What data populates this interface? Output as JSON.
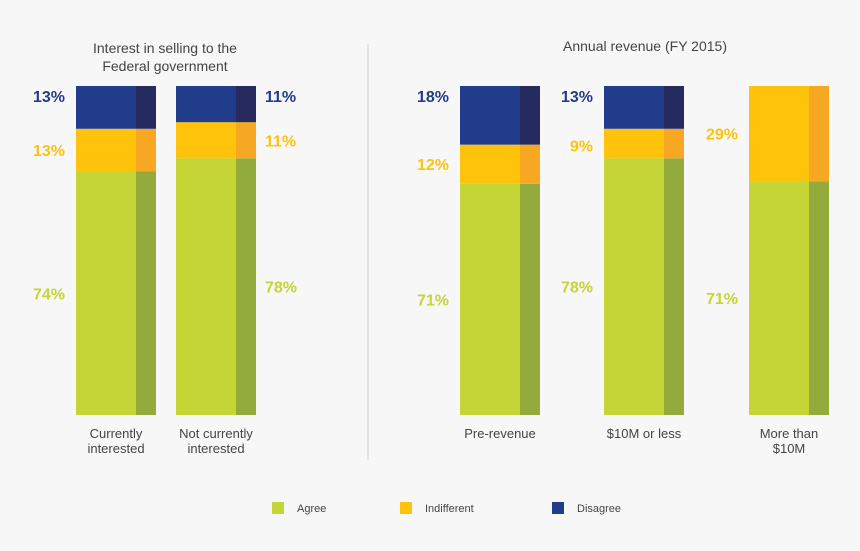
{
  "colors": {
    "agree": "#c5d535",
    "agree_dark": "#92ab3c",
    "indifferent": "#ffc30b",
    "indifferent_dark": "#f7a823",
    "disagree": "#223c8c",
    "disagree_dark": "#262a5e",
    "text": "#444444",
    "divider": "#cccccc"
  },
  "chart_data": [
    {
      "type": "bar",
      "stacked": true,
      "title_lines": [
        "Interest in selling to the",
        "Federal government"
      ],
      "categories": [
        {
          "lines": [
            "Currently",
            "interested"
          ]
        },
        {
          "lines": [
            "Not currently",
            "interested"
          ]
        }
      ],
      "series": [
        {
          "name": "Agree",
          "key": "agree",
          "values": [
            74,
            78
          ],
          "labels": [
            "74%",
            "78%"
          ]
        },
        {
          "name": "Indifferent",
          "key": "indifferent",
          "values": [
            13,
            11
          ],
          "labels": [
            "13%",
            "11%"
          ]
        },
        {
          "name": "Disagree",
          "key": "disagree",
          "values": [
            13,
            11
          ],
          "labels": [
            "13%",
            "11%"
          ]
        }
      ],
      "label_side": [
        "left",
        "right"
      ],
      "ylim": [
        0,
        100
      ]
    },
    {
      "type": "bar",
      "stacked": true,
      "title_lines": [
        "Annual revenue (FY 2015)"
      ],
      "categories": [
        {
          "lines": [
            "Pre-revenue"
          ]
        },
        {
          "lines": [
            "$10M or less"
          ]
        },
        {
          "lines": [
            "More than",
            "$10M"
          ]
        }
      ],
      "series": [
        {
          "name": "Agree",
          "key": "agree",
          "values": [
            71,
            78,
            71
          ],
          "labels": [
            "71%",
            "78%",
            "71%"
          ]
        },
        {
          "name": "Indifferent",
          "key": "indifferent",
          "values": [
            12,
            9,
            29
          ],
          "labels": [
            "12%",
            "9%",
            "29%"
          ]
        },
        {
          "name": "Disagree",
          "key": "disagree",
          "values": [
            18,
            13,
            0
          ],
          "labels": [
            "18%",
            "13%",
            ""
          ]
        }
      ],
      "label_side": [
        "left",
        "left",
        "left"
      ],
      "ylim": [
        0,
        100
      ]
    }
  ],
  "legend": [
    {
      "key": "agree",
      "label": "Agree"
    },
    {
      "key": "indifferent",
      "label": "Indifferent"
    },
    {
      "key": "disagree",
      "label": "Disagree"
    }
  ]
}
